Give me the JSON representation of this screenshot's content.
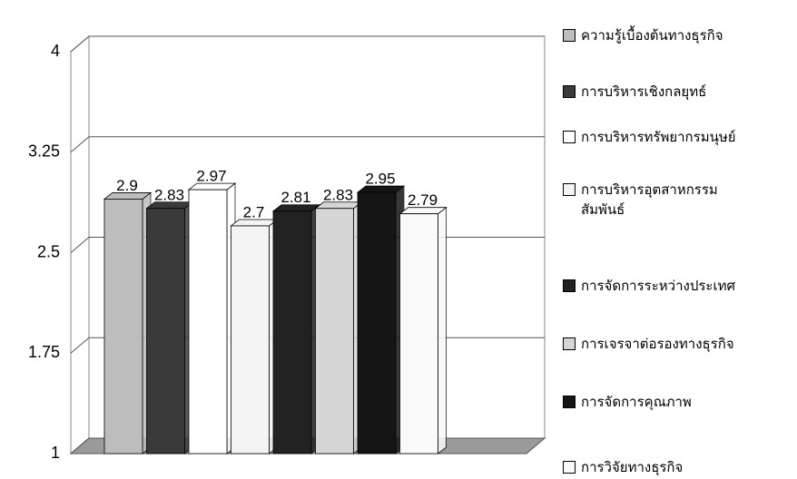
{
  "chart_data": {
    "type": "bar",
    "categories": [
      null
    ],
    "series": [
      {
        "name": "ความรู้เบื้องต้นทางธุรกิจ",
        "color": "#bdbdbd",
        "values": [
          2.9
        ]
      },
      {
        "name": "การบริหารเชิงกลยุทธ์",
        "color": "#3a3a3a",
        "values": [
          2.83
        ]
      },
      {
        "name": "การบริหารทรัพยากรมนุษย์",
        "color": "#ffffff",
        "values": [
          2.97
        ]
      },
      {
        "name": "การบริหารอุตสาหกรรม สัมพันธ์",
        "color": "#f4f4f4",
        "values": [
          2.7
        ]
      },
      {
        "name": "การจัดการระหว่างประเทศ",
        "color": "#222222",
        "values": [
          2.81
        ]
      },
      {
        "name": "การเจรจาต่อรองทางธุรกิจ",
        "color": "#d6d6d6",
        "values": [
          2.83
        ]
      },
      {
        "name": "การจัดการคุณภาพ",
        "color": "#151515",
        "values": [
          2.95
        ]
      },
      {
        "name": "การวิจัยทางธุรกิจ",
        "color": "#fafafa",
        "values": [
          2.79
        ]
      }
    ],
    "ylim": [
      1,
      4
    ],
    "yticks": [
      1,
      1.75,
      2.5,
      3.25,
      4
    ],
    "grid": true,
    "legend": "right"
  }
}
